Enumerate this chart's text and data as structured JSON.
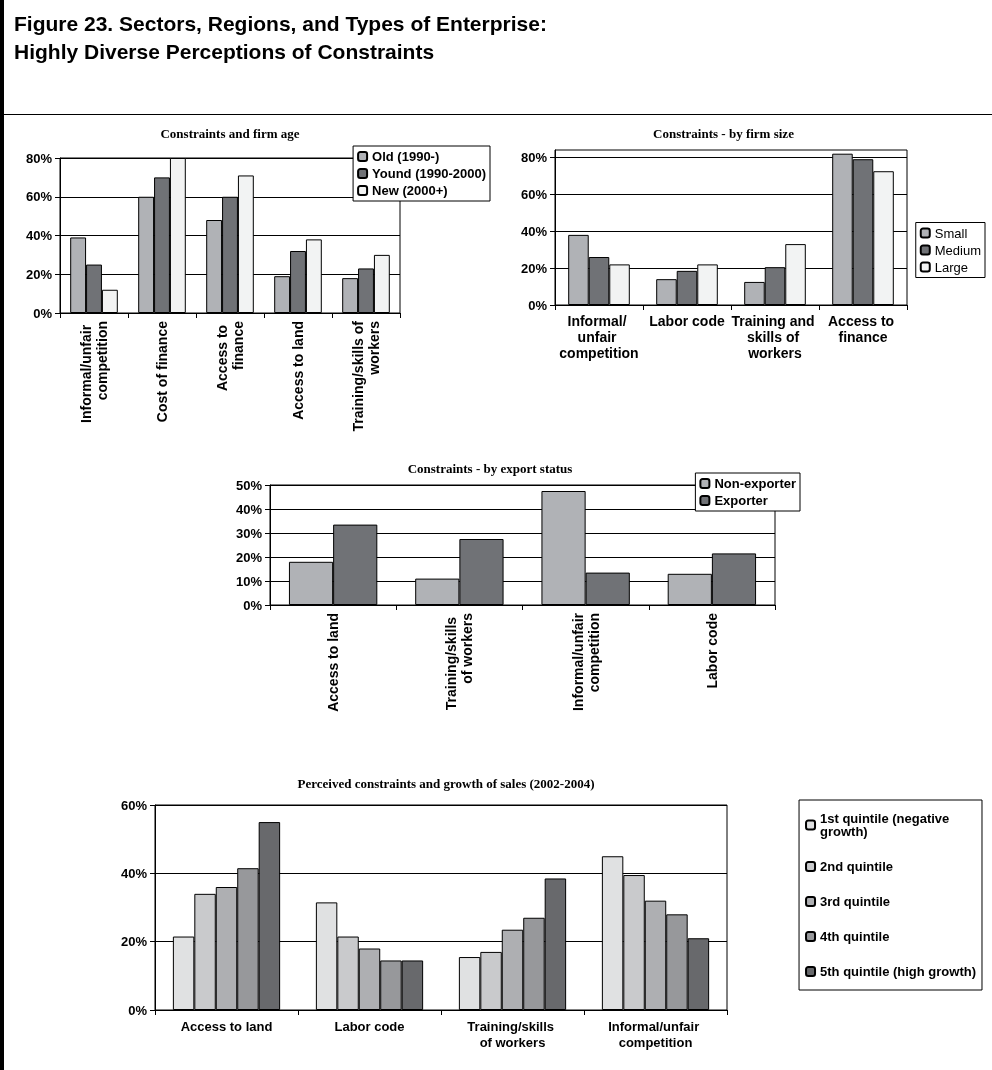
{
  "chart_data": [
    {
      "type": "bar",
      "title": "Constraints and firm age",
      "annotations": [
        "Figure 23.  Sectors, Regions, and Types of Enterprise: Highly Diverse Perceptions of Constraints"
      ],
      "categories": [
        "Informal/unfair competition",
        "Cost of finance",
        "Access to finance",
        "Access to land",
        "Training/skills of workers"
      ],
      "series": [
        {
          "name": "Old (1990-)",
          "color": "#b0b2b6",
          "values": [
            39,
            60,
            48,
            19,
            18
          ]
        },
        {
          "name": "Yound (1990-2000)",
          "color": "#707276",
          "values": [
            25,
            70,
            60,
            32,
            23
          ]
        },
        {
          "name": "New (2000+)",
          "color": "#f2f3f3",
          "values": [
            12,
            80,
            71,
            38,
            30
          ]
        }
      ],
      "ylim": [
        0,
        80
      ],
      "yticks": [
        {
          "value": 0,
          "label": "0%"
        },
        {
          "value": 20,
          "label": "20%"
        },
        {
          "value": 40,
          "label": "40%"
        },
        {
          "value": 60,
          "label": "60%"
        },
        {
          "value": 80,
          "label": "80%"
        }
      ],
      "grid": "y",
      "legend": "top right"
    },
    {
      "type": "bar",
      "title": "Constraints - by firm size",
      "categories": [
        "Informal/ unfair competition",
        "Labor code",
        "Training and skills of workers",
        "Access to finance"
      ],
      "series": [
        {
          "name": "Small",
          "color": "#b0b2b6",
          "values": [
            38,
            14,
            12.5,
            82
          ]
        },
        {
          "name": "Medium",
          "color": "#707276",
          "values": [
            26,
            18.5,
            20.5,
            79
          ]
        },
        {
          "name": "Large",
          "color": "#f2f3f3",
          "values": [
            22,
            22,
            33,
            72.5
          ]
        }
      ],
      "ylim": [
        0,
        84
      ],
      "yticks": [
        {
          "value": 0,
          "label": "0%"
        },
        {
          "value": 20,
          "label": "20%"
        },
        {
          "value": 40,
          "label": "40%"
        },
        {
          "value": 60,
          "label": "60%"
        },
        {
          "value": 80,
          "label": "80%"
        }
      ],
      "grid": "y",
      "legend": "right"
    },
    {
      "type": "bar",
      "title": "Constraints - by export status",
      "categories": [
        "Access to land",
        "Training/skills of workers",
        "Informal/unfair competition",
        "Labor code"
      ],
      "series": [
        {
          "name": "Non-exporter",
          "color": "#b0b2b6",
          "values": [
            18,
            11,
            47.5,
            13
          ]
        },
        {
          "name": "Exporter",
          "color": "#707276",
          "values": [
            33.5,
            27.5,
            13.5,
            21.5
          ]
        }
      ],
      "ylim": [
        0,
        50
      ],
      "yticks": [
        {
          "value": 0,
          "label": "0%"
        },
        {
          "value": 10,
          "label": "10%"
        },
        {
          "value": 20,
          "label": "20%"
        },
        {
          "value": 30,
          "label": "30%"
        },
        {
          "value": 40,
          "label": "40%"
        },
        {
          "value": 50,
          "label": "50%"
        }
      ],
      "grid": "y",
      "legend": "top right"
    },
    {
      "type": "bar",
      "title": "Perceived constraints and growth of sales (2002-2004)",
      "categories": [
        "Access to land",
        "Labor code",
        "Training/skills of workers",
        "Informal/unfair competition"
      ],
      "series": [
        {
          "name": "1st quintile (negative growth)",
          "color": "#e0e1e2",
          "values": [
            21.5,
            31.5,
            15.5,
            45
          ]
        },
        {
          "name": "2nd quintile",
          "color": "#c9cacc",
          "values": [
            34,
            21.5,
            17,
            39.5
          ]
        },
        {
          "name": "3rd quintile",
          "color": "#aeafb2",
          "values": [
            36,
            18,
            23.5,
            32
          ]
        },
        {
          "name": "4th quintile",
          "color": "#97989b",
          "values": [
            41.5,
            14.5,
            27,
            28
          ]
        },
        {
          "name": "5th quintile (high growth)",
          "color": "#68696c",
          "values": [
            55,
            14.5,
            38.5,
            21
          ]
        }
      ],
      "ylim": [
        0,
        60
      ],
      "yticks": [
        {
          "value": 0,
          "label": "0%"
        },
        {
          "value": 20,
          "label": "20%"
        },
        {
          "value": 40,
          "label": "40%"
        },
        {
          "value": 60,
          "label": "60%"
        }
      ],
      "grid": "y",
      "legend": "right"
    }
  ]
}
